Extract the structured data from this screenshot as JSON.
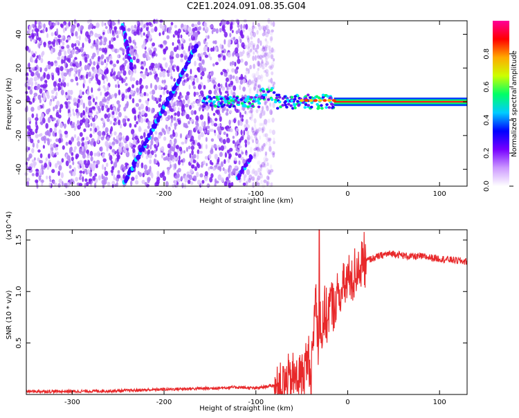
{
  "figure_title": "C2E1.2024.091.08.35.G04",
  "chart_data": [
    {
      "type": "heatmap",
      "title": "",
      "xlabel": "Height of straight line (km)",
      "ylabel": "Frequency (Hz)",
      "xlim": [
        -350,
        130
      ],
      "ylim": [
        -50,
        48
      ],
      "xticks": [
        -300,
        -200,
        -100,
        0,
        100
      ],
      "yticks": [
        -40,
        -20,
        0,
        20,
        40
      ],
      "colorbar": {
        "label": "Normalized spectral amplitude",
        "range": [
          0,
          1
        ],
        "ticks": [
          "0.0",
          "0.2",
          "0.4",
          "0.6",
          "0.8"
        ],
        "colors": [
          "#ffffff",
          "#cc99ff",
          "#7700ff",
          "#0000ff",
          "#00ccff",
          "#00ff66",
          "#ccff00",
          "#ffaa00",
          "#ff0000",
          "#ff0099"
        ]
      },
      "features": [
        {
          "name": "streak-1",
          "x": [
            -245,
            -235
          ],
          "y": [
            45,
            20
          ]
        },
        {
          "name": "streak-2",
          "x": [
            -243,
            -165
          ],
          "y": [
            -48,
            33
          ]
        },
        {
          "name": "streak-3",
          "x": [
            -120,
            -105
          ],
          "y": [
            -45,
            -33
          ]
        },
        {
          "name": "carrier-band",
          "x": [
            -160,
            130
          ],
          "y": [
            0,
            0
          ],
          "amplitude": "low to 1.0 toward positive heights"
        }
      ]
    },
    {
      "type": "line",
      "title": "",
      "xlabel": "Height of straight line (km)",
      "ylabel": "SNR (10 * v/v)",
      "y_multiplier": "(x10^4)",
      "xlim": [
        -350,
        130
      ],
      "ylim": [
        0,
        1.6
      ],
      "xticks": [
        -300,
        -200,
        -100,
        0,
        100
      ],
      "yticks": [
        "0.5",
        "1.0",
        "1.5"
      ],
      "series": [
        {
          "color": "#e8282a",
          "x": [
            -350,
            -300,
            -250,
            -200,
            -150,
            -120,
            -100,
            -80,
            -65,
            -55,
            -48,
            -45,
            -42,
            -40,
            -38,
            -35,
            -32,
            -30,
            -28,
            -25,
            -22,
            -20,
            -15,
            -10,
            -5,
            0,
            5,
            10,
            20,
            30,
            40,
            50,
            60,
            70,
            80,
            90,
            100,
            110,
            120,
            130
          ],
          "values": [
            0.03,
            0.03,
            0.035,
            0.05,
            0.06,
            0.07,
            0.06,
            0.09,
            0.12,
            0.17,
            0.2,
            0.3,
            0.35,
            0.15,
            0.45,
            1.0,
            0.5,
            0.75,
            0.55,
            0.8,
            0.7,
            0.9,
            0.85,
            0.95,
            1.0,
            1.12,
            1.12,
            1.22,
            1.3,
            1.33,
            1.36,
            1.37,
            1.35,
            1.34,
            1.34,
            1.33,
            1.32,
            1.31,
            1.3,
            1.29
          ]
        }
      ]
    }
  ]
}
